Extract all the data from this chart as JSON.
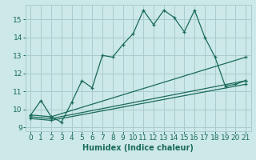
{
  "title": "",
  "xlabel": "Humidex (Indice chaleur)",
  "bg_color": "#cce8e8",
  "grid_color": "#aacccc",
  "line_color": "#1a6b5a",
  "xlim": [
    -0.5,
    21.5
  ],
  "ylim": [
    8.8,
    15.8
  ],
  "xticks": [
    0,
    1,
    2,
    3,
    4,
    5,
    6,
    7,
    8,
    9,
    10,
    11,
    12,
    13,
    14,
    15,
    16,
    17,
    18,
    19,
    20,
    21
  ],
  "yticks": [
    9,
    10,
    11,
    12,
    13,
    14,
    15
  ],
  "line1_x": [
    0,
    1,
    2,
    3,
    4,
    5,
    6,
    7,
    8,
    9,
    10,
    11,
    12,
    13,
    14,
    15,
    16,
    17,
    18,
    19,
    20,
    21
  ],
  "line1_y": [
    9.7,
    10.5,
    9.6,
    9.3,
    10.4,
    11.6,
    11.2,
    13.0,
    12.9,
    13.6,
    14.2,
    15.5,
    14.7,
    15.5,
    15.1,
    14.3,
    15.5,
    14.0,
    12.9,
    11.3,
    11.4,
    11.6
  ],
  "line2_x": [
    0,
    2,
    21
  ],
  "line2_y": [
    9.7,
    9.6,
    12.9
  ],
  "line3_x": [
    0,
    2,
    21
  ],
  "line3_y": [
    9.6,
    9.5,
    11.6
  ],
  "line4_x": [
    0,
    2,
    21
  ],
  "line4_y": [
    9.5,
    9.4,
    11.4
  ],
  "lw": 0.9,
  "ms": 2.5,
  "tick_fontsize": 6.5,
  "xlabel_fontsize": 7
}
